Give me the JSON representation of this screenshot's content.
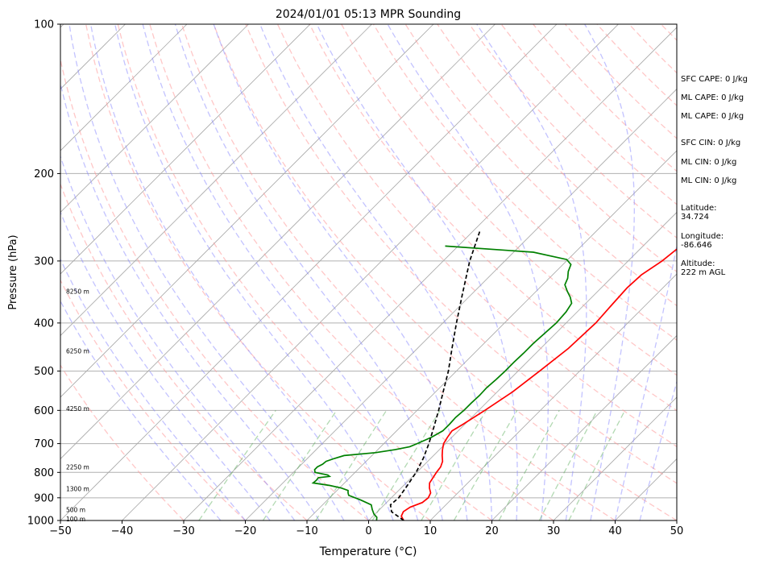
{
  "chart_data": {
    "type": "line",
    "title": "2024/01/01 05:13 MPR Sounding",
    "xlabel": "Temperature (°C)",
    "ylabel": "Pressure (hPa)",
    "xlim": [
      -50,
      50
    ],
    "ylim": [
      1000,
      100
    ],
    "y_scale": "log",
    "skew": "skew-T log-P diagram",
    "grid": true,
    "x_ticks": [
      "−50",
      "−40",
      "−30",
      "−20",
      "−10",
      "0",
      "10",
      "20",
      "30",
      "40",
      "50"
    ],
    "y_ticks": [
      "100",
      "200",
      "300",
      "400",
      "500",
      "600",
      "700",
      "800",
      "900",
      "1000"
    ],
    "height_labels": [
      {
        "text": "8250 m",
        "p": 345
      },
      {
        "text": "6250 m",
        "p": 455
      },
      {
        "text": "4250 m",
        "p": 595
      },
      {
        "text": "2250 m",
        "p": 780
      },
      {
        "text": "1300 m",
        "p": 862
      },
      {
        "text": "500 m",
        "p": 950
      },
      {
        "text": "100 m",
        "p": 992
      }
    ],
    "series": [
      {
        "kind": "temperature",
        "color": "#ff0000",
        "points": [
          [
            1000,
            5.7
          ],
          [
            980,
            4.6
          ],
          [
            960,
            4.2
          ],
          [
            940,
            4.6
          ],
          [
            920,
            5.8
          ],
          [
            900,
            6.0
          ],
          [
            880,
            5.6
          ],
          [
            860,
            4.6
          ],
          [
            840,
            3.8
          ],
          [
            820,
            3.5
          ],
          [
            800,
            3.2
          ],
          [
            780,
            3.0
          ],
          [
            760,
            2.4
          ],
          [
            740,
            1.4
          ],
          [
            720,
            0.5
          ],
          [
            700,
            -0.3
          ],
          [
            680,
            -0.7
          ],
          [
            660,
            -1.0
          ],
          [
            640,
            -0.3
          ],
          [
            600,
            1.0
          ],
          [
            550,
            2.5
          ],
          [
            500,
            3.5
          ],
          [
            450,
            4.5
          ],
          [
            400,
            4.8
          ],
          [
            370,
            4.5
          ],
          [
            340,
            4.2
          ],
          [
            320,
            4.4
          ],
          [
            300,
            5.5
          ],
          [
            280,
            6.1
          ],
          [
            260,
            6.9
          ]
        ]
      },
      {
        "kind": "dewpoint",
        "color": "#008000",
        "points": [
          [
            1000,
            1.3
          ],
          [
            985,
            0.8
          ],
          [
            970,
            -0.2
          ],
          [
            950,
            -1.2
          ],
          [
            930,
            -2.1
          ],
          [
            910,
            -4.5
          ],
          [
            890,
            -7.3
          ],
          [
            880,
            -7.8
          ],
          [
            870,
            -8.2
          ],
          [
            860,
            -9.7
          ],
          [
            850,
            -12.0
          ],
          [
            840,
            -15.1
          ],
          [
            830,
            -15.0
          ],
          [
            820,
            -15.1
          ],
          [
            815,
            -13.5
          ],
          [
            810,
            -14.0
          ],
          [
            800,
            -16.5
          ],
          [
            790,
            -17.0
          ],
          [
            780,
            -17.0
          ],
          [
            770,
            -16.6
          ],
          [
            760,
            -16.5
          ],
          [
            750,
            -15.6
          ],
          [
            740,
            -14.5
          ],
          [
            730,
            -9.9
          ],
          [
            720,
            -7.2
          ],
          [
            710,
            -5.3
          ],
          [
            700,
            -4.6
          ],
          [
            680,
            -3.3
          ],
          [
            660,
            -2.5
          ],
          [
            640,
            -2.5
          ],
          [
            620,
            -2.6
          ],
          [
            600,
            -2.4
          ],
          [
            580,
            -2.4
          ],
          [
            560,
            -2.3
          ],
          [
            540,
            -2.4
          ],
          [
            520,
            -2.2
          ],
          [
            500,
            -2.1
          ],
          [
            480,
            -2.1
          ],
          [
            460,
            -2.0
          ],
          [
            440,
            -2.0
          ],
          [
            420,
            -1.8
          ],
          [
            400,
            -1.6
          ],
          [
            380,
            -1.8
          ],
          [
            365,
            -2.3
          ],
          [
            355,
            -3.5
          ],
          [
            345,
            -5.0
          ],
          [
            335,
            -6.4
          ],
          [
            325,
            -7.0
          ],
          [
            315,
            -8.0
          ],
          [
            305,
            -8.7
          ],
          [
            298,
            -10.2
          ],
          [
            288,
            -16.8
          ],
          [
            280,
            -32.1
          ]
        ]
      },
      {
        "kind": "parcel",
        "color": "#000000",
        "points": [
          [
            1000,
            5.7
          ],
          [
            960,
            2.3
          ],
          [
            930,
            1.0
          ],
          [
            900,
            1.2
          ],
          [
            850,
            0.6
          ],
          [
            800,
            -0.1
          ],
          [
            750,
            -1.2
          ],
          [
            700,
            -2.7
          ],
          [
            650,
            -4.5
          ],
          [
            600,
            -6.5
          ],
          [
            550,
            -8.8
          ],
          [
            500,
            -11.3
          ],
          [
            450,
            -14.4
          ],
          [
            400,
            -17.8
          ],
          [
            350,
            -21.5
          ],
          [
            300,
            -25.7
          ],
          [
            260,
            -29.0
          ]
        ]
      }
    ]
  },
  "stats": {
    "sfc_cape": "SFC CAPE: 0 J/kg",
    "ml_cape_1": "ML CAPE: 0 J/kg",
    "ml_cape_2": "ML CAPE: 0 J/kg",
    "sfc_cin": "SFC CIN: 0 J/kg",
    "ml_cin_1": "ML CIN: 0 J/kg",
    "ml_cin_2": "ML CIN: 0 J/kg",
    "latitude": "Latitude:\n34.724",
    "longitude": "Longitude:\n-86.646",
    "altitude": "Altitude:\n222 m AGL"
  }
}
